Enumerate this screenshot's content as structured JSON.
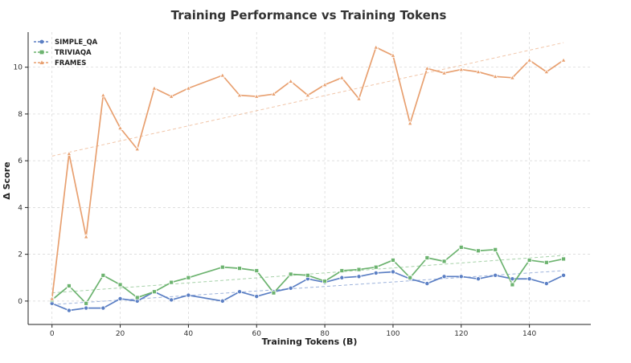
{
  "chart_data": {
    "type": "line",
    "title": "Training Performance vs Training Tokens",
    "xlabel": "Training Tokens (B)",
    "ylabel": "Δ Score",
    "xlim": [
      -7,
      158
    ],
    "ylim": [
      -1.0,
      11.5
    ],
    "xticks": [
      0,
      20,
      40,
      60,
      80,
      100,
      120,
      140
    ],
    "yticks": [
      0,
      2,
      4,
      6,
      8,
      10
    ],
    "grid": true,
    "legend_position": "top-left",
    "series": [
      {
        "name": "SIMPLE_QA",
        "color": "#5b7fc4",
        "marker": "circle",
        "x": [
          0,
          5,
          10,
          15,
          20,
          25,
          30,
          35,
          40,
          50,
          55,
          60,
          65,
          70,
          75,
          80,
          85,
          90,
          95,
          100,
          105,
          110,
          115,
          120,
          125,
          130,
          135,
          140,
          145,
          150
        ],
        "y": [
          -0.1,
          -0.4,
          -0.3,
          -0.3,
          0.1,
          0.0,
          0.4,
          0.05,
          0.25,
          0.0,
          0.4,
          0.2,
          0.4,
          0.55,
          0.95,
          0.8,
          1.0,
          1.05,
          1.2,
          1.25,
          0.95,
          0.75,
          1.05,
          1.05,
          0.95,
          1.1,
          0.95,
          0.95,
          0.75,
          1.1
        ],
        "trend": [
          -0.15,
          1.3
        ]
      },
      {
        "name": "TRIVIAQA",
        "color": "#6cb36f",
        "marker": "square",
        "x": [
          0,
          5,
          10,
          15,
          20,
          25,
          30,
          35,
          40,
          50,
          55,
          60,
          65,
          70,
          75,
          80,
          85,
          90,
          95,
          100,
          105,
          110,
          115,
          120,
          125,
          130,
          135,
          140,
          145,
          150
        ],
        "y": [
          0.05,
          0.65,
          -0.1,
          1.1,
          0.7,
          0.15,
          0.4,
          0.8,
          1.0,
          1.45,
          1.4,
          1.3,
          0.35,
          1.15,
          1.1,
          0.85,
          1.3,
          1.35,
          1.45,
          1.75,
          1.0,
          1.85,
          1.7,
          2.3,
          2.15,
          2.2,
          0.7,
          1.75,
          1.65,
          1.8
        ],
        "trend": [
          0.35,
          1.95
        ]
      },
      {
        "name": "FRAMES",
        "color": "#e8a070",
        "marker": "triangle",
        "x": [
          0,
          5,
          10,
          15,
          20,
          25,
          30,
          35,
          40,
          50,
          55,
          60,
          65,
          70,
          75,
          80,
          85,
          90,
          95,
          100,
          105,
          110,
          115,
          120,
          125,
          130,
          135,
          140,
          145,
          150
        ],
        "y": [
          0.1,
          6.3,
          2.75,
          8.8,
          7.4,
          6.5,
          9.1,
          8.75,
          9.1,
          9.65,
          8.8,
          8.75,
          8.85,
          9.4,
          8.8,
          9.25,
          9.55,
          8.65,
          10.85,
          10.5,
          7.6,
          9.95,
          9.75,
          9.9,
          9.8,
          9.6,
          9.55,
          10.3,
          9.8,
          10.3
        ],
        "trend": [
          6.2,
          11.05
        ]
      }
    ]
  }
}
